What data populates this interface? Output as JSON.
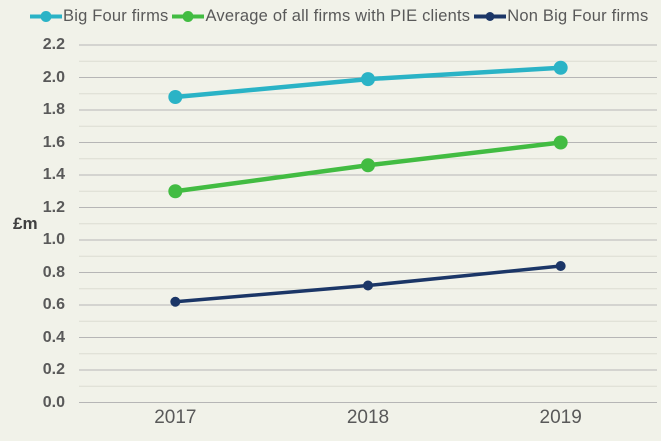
{
  "chart_data": {
    "type": "line",
    "categories": [
      "2017",
      "2018",
      "2019"
    ],
    "series": [
      {
        "name": "Big Four firms",
        "color": "#2ab3c6",
        "values": [
          1.88,
          1.99,
          2.06
        ]
      },
      {
        "name": "Average of all firms with PIE clients",
        "color": "#42bc42",
        "values": [
          1.3,
          1.46,
          1.6
        ]
      },
      {
        "name": "Non Big Four firms",
        "color": "#1b3667",
        "values": [
          0.62,
          0.72,
          0.84
        ]
      }
    ],
    "ylabel": "£m",
    "ylim": [
      0,
      2.2
    ],
    "ytick_labels": [
      "0.0",
      "0.2",
      "0.4",
      "0.6",
      "0.8",
      "1.0",
      "1.2",
      "1.4",
      "1.6",
      "1.8",
      "2.0",
      "2.2"
    ],
    "minor_grid_step": 0.1,
    "grid": true,
    "legend_position": "top"
  },
  "colors": {
    "background": "#f1f2e9",
    "major_grid": "#b6b6b6",
    "minor_grid": "#dcdcd2",
    "tick_text": "#595959"
  }
}
